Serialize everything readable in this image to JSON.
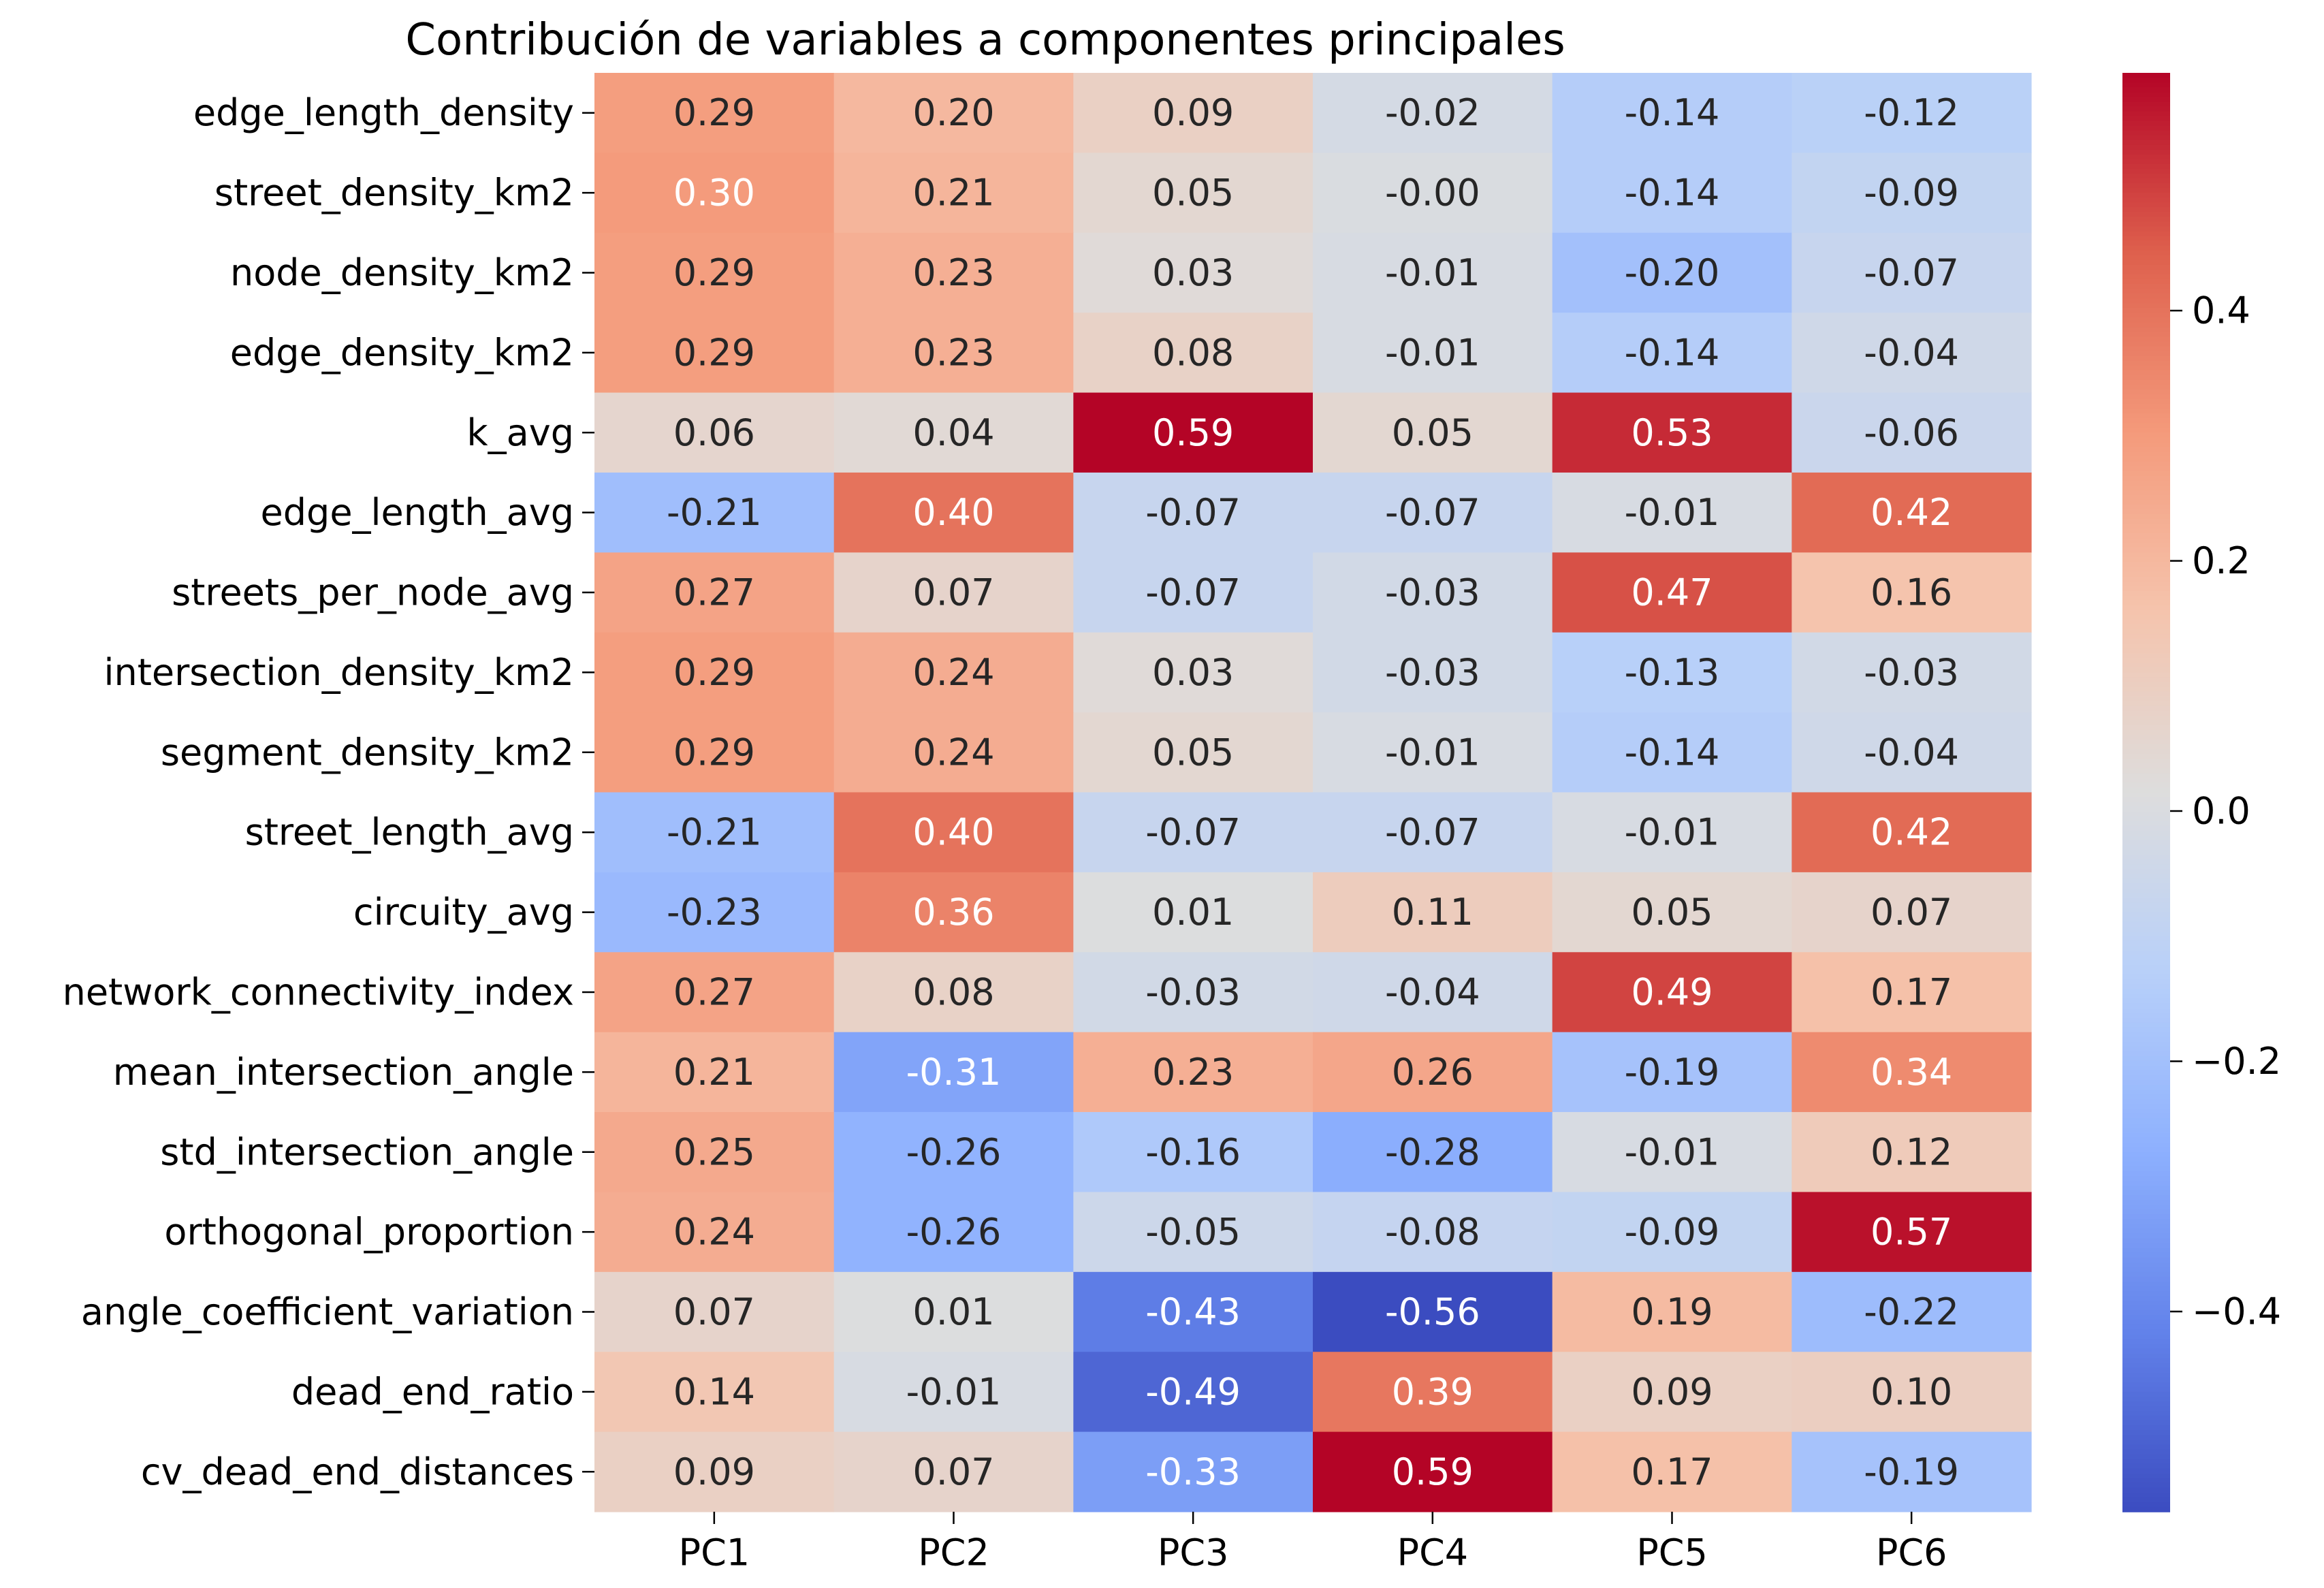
{
  "chart_data": {
    "type": "heatmap",
    "title": "Contribución de variables a componentes principales",
    "columns": [
      "PC1",
      "PC2",
      "PC3",
      "PC4",
      "PC5",
      "PC6"
    ],
    "rows": [
      "edge_length_density",
      "street_density_km2",
      "node_density_km2",
      "edge_density_km2",
      "k_avg",
      "edge_length_avg",
      "streets_per_node_avg",
      "intersection_density_km2",
      "segment_density_km2",
      "street_length_avg",
      "circuity_avg",
      "network_connectivity_index",
      "mean_intersection_angle",
      "std_intersection_angle",
      "orthogonal_proportion",
      "angle_coefficient_variation",
      "dead_end_ratio",
      "cv_dead_end_distances"
    ],
    "values": [
      [
        0.29,
        0.2,
        0.09,
        -0.02,
        -0.14,
        -0.12
      ],
      [
        0.3,
        0.21,
        0.05,
        -0.0,
        -0.14,
        -0.09
      ],
      [
        0.29,
        0.23,
        0.03,
        -0.01,
        -0.2,
        -0.07
      ],
      [
        0.29,
        0.23,
        0.08,
        -0.01,
        -0.14,
        -0.04
      ],
      [
        0.06,
        0.04,
        0.59,
        0.05,
        0.53,
        -0.06
      ],
      [
        -0.21,
        0.4,
        -0.07,
        -0.07,
        -0.01,
        0.42
      ],
      [
        0.27,
        0.07,
        -0.07,
        -0.03,
        0.47,
        0.16
      ],
      [
        0.29,
        0.24,
        0.03,
        -0.03,
        -0.13,
        -0.03
      ],
      [
        0.29,
        0.24,
        0.05,
        -0.01,
        -0.14,
        -0.04
      ],
      [
        -0.21,
        0.4,
        -0.07,
        -0.07,
        -0.01,
        0.42
      ],
      [
        -0.23,
        0.36,
        0.01,
        0.11,
        0.05,
        0.07
      ],
      [
        0.27,
        0.08,
        -0.03,
        -0.04,
        0.49,
        0.17
      ],
      [
        0.21,
        -0.31,
        0.23,
        0.26,
        -0.19,
        0.34
      ],
      [
        0.25,
        -0.26,
        -0.16,
        -0.28,
        -0.01,
        0.12
      ],
      [
        0.24,
        -0.26,
        -0.05,
        -0.08,
        -0.09,
        0.57
      ],
      [
        0.07,
        0.01,
        -0.43,
        -0.56,
        0.19,
        -0.22
      ],
      [
        0.14,
        -0.01,
        -0.49,
        0.39,
        0.09,
        0.1
      ],
      [
        0.09,
        0.07,
        -0.33,
        0.59,
        0.17,
        -0.19
      ]
    ],
    "labels": [
      [
        "0.29",
        "0.20",
        "0.09",
        "-0.02",
        "-0.14",
        "-0.12"
      ],
      [
        "0.30",
        "0.21",
        "0.05",
        "-0.00",
        "-0.14",
        "-0.09"
      ],
      [
        "0.29",
        "0.23",
        "0.03",
        "-0.01",
        "-0.20",
        "-0.07"
      ],
      [
        "0.29",
        "0.23",
        "0.08",
        "-0.01",
        "-0.14",
        "-0.04"
      ],
      [
        "0.06",
        "0.04",
        "0.59",
        "0.05",
        "0.53",
        "-0.06"
      ],
      [
        "-0.21",
        "0.40",
        "-0.07",
        "-0.07",
        "-0.01",
        "0.42"
      ],
      [
        "0.27",
        "0.07",
        "-0.07",
        "-0.03",
        "0.47",
        "0.16"
      ],
      [
        "0.29",
        "0.24",
        "0.03",
        "-0.03",
        "-0.13",
        "-0.03"
      ],
      [
        "0.29",
        "0.24",
        "0.05",
        "-0.01",
        "-0.14",
        "-0.04"
      ],
      [
        "-0.21",
        "0.40",
        "-0.07",
        "-0.07",
        "-0.01",
        "0.42"
      ],
      [
        "-0.23",
        "0.36",
        "0.01",
        "0.11",
        "0.05",
        "0.07"
      ],
      [
        "0.27",
        "0.08",
        "-0.03",
        "-0.04",
        "0.49",
        "0.17"
      ],
      [
        "0.21",
        "-0.31",
        "0.23",
        "0.26",
        "-0.19",
        "0.34"
      ],
      [
        "0.25",
        "-0.26",
        "-0.16",
        "-0.28",
        "-0.01",
        "0.12"
      ],
      [
        "0.24",
        "-0.26",
        "-0.05",
        "-0.08",
        "-0.09",
        "0.57"
      ],
      [
        "0.07",
        "0.01",
        "-0.43",
        "-0.56",
        "0.19",
        "-0.22"
      ],
      [
        "0.14",
        "-0.01",
        "-0.49",
        "0.39",
        "0.09",
        "0.10"
      ],
      [
        "0.09",
        "0.07",
        "-0.33",
        "0.59",
        "0.17",
        "-0.19"
      ]
    ],
    "colormap": "coolwarm",
    "vmin": -0.56,
    "vmax": 0.59,
    "colorbar_ticks": [
      0.4,
      0.2,
      0.0,
      -0.2,
      -0.4
    ],
    "colorbar_tick_labels": [
      "0.4",
      "0.2",
      "0.0",
      "−0.2",
      "−0.4"
    ],
    "text_color_dark": "#262626",
    "text_color_light": "#ffffff"
  }
}
